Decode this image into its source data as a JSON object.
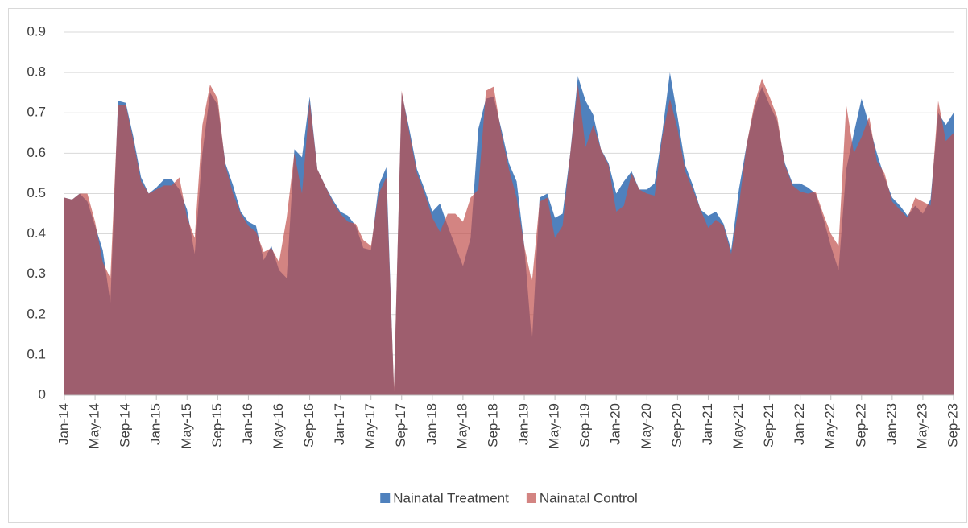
{
  "chart_data": {
    "type": "area",
    "categories": [
      "Jan-14",
      null,
      null,
      null,
      "May-14",
      null,
      null,
      null,
      "Sep-14",
      null,
      null,
      null,
      "Jan-15",
      null,
      null,
      null,
      "May-15",
      null,
      null,
      null,
      "Sep-15",
      null,
      null,
      null,
      "Jan-16",
      null,
      null,
      null,
      "May-16",
      null,
      null,
      null,
      "Sep-16",
      null,
      null,
      null,
      "Jan-17",
      null,
      null,
      null,
      "May-17",
      null,
      null,
      null,
      "Sep-17",
      null,
      null,
      null,
      "Jan-18",
      null,
      null,
      null,
      "May-18",
      null,
      null,
      null,
      "Sep-18",
      null,
      null,
      null,
      "Jan-19",
      null,
      null,
      null,
      "May-19",
      null,
      null,
      null,
      "Sep-19",
      null,
      null,
      null,
      "Jan-20",
      null,
      null,
      null,
      "May-20",
      null,
      null,
      null,
      "Sep-20",
      null,
      null,
      null,
      "Jan-21",
      null,
      null,
      null,
      "May-21",
      null,
      null,
      null,
      "Sep-21",
      null,
      null,
      null,
      "Jan-22",
      null,
      null,
      null,
      "May-22",
      null,
      null,
      null,
      "Sep-22",
      null,
      null,
      null,
      "Jan-23",
      null,
      null,
      null,
      "May-23",
      null,
      null,
      null,
      "Sep-23"
    ],
    "series": [
      {
        "name": "Nainatal Treatment",
        "color": "#4f81bd",
        "values": [
          0.49,
          0.485,
          0.5,
          0.48,
          0.42,
          0.36,
          0.23,
          0.73,
          0.725,
          0.64,
          0.54,
          0.5,
          0.515,
          0.535,
          0.535,
          0.51,
          0.46,
          0.35,
          0.6,
          0.75,
          0.72,
          0.575,
          0.52,
          0.455,
          0.43,
          0.42,
          0.335,
          0.37,
          0.31,
          0.29,
          0.61,
          0.59,
          0.74,
          0.56,
          0.52,
          0.485,
          0.455,
          0.445,
          0.42,
          0.365,
          0.36,
          0.52,
          0.565,
          0.01,
          0.75,
          0.66,
          0.56,
          0.51,
          0.455,
          0.475,
          0.42,
          0.37,
          0.32,
          0.39,
          0.66,
          0.735,
          0.74,
          0.66,
          0.575,
          0.53,
          0.37,
          0.13,
          0.49,
          0.5,
          0.44,
          0.45,
          0.6,
          0.79,
          0.73,
          0.695,
          0.61,
          0.575,
          0.5,
          0.53,
          0.555,
          0.51,
          0.51,
          0.525,
          0.65,
          0.8,
          0.69,
          0.57,
          0.52,
          0.46,
          0.445,
          0.455,
          0.425,
          0.36,
          0.51,
          0.62,
          0.71,
          0.765,
          0.72,
          0.68,
          0.575,
          0.525,
          0.525,
          0.515,
          0.5,
          0.44,
          0.37,
          0.31,
          0.56,
          0.65,
          0.735,
          0.67,
          0.6,
          0.54,
          0.49,
          0.47,
          0.445,
          0.47,
          0.45,
          0.485,
          0.7,
          0.67,
          0.7
        ]
      },
      {
        "name": "Nainatal Control",
        "color": "#c0504d",
        "values": [
          0.49,
          0.485,
          0.5,
          0.5,
          0.43,
          0.33,
          0.29,
          0.72,
          0.72,
          0.63,
          0.53,
          0.5,
          0.51,
          0.52,
          0.52,
          0.54,
          0.44,
          0.39,
          0.67,
          0.77,
          0.735,
          0.57,
          0.5,
          0.45,
          0.42,
          0.405,
          0.355,
          0.365,
          0.33,
          0.44,
          0.6,
          0.5,
          0.73,
          0.56,
          0.52,
          0.48,
          0.45,
          0.43,
          0.425,
          0.385,
          0.37,
          0.5,
          0.54,
          0.02,
          0.755,
          0.65,
          0.55,
          0.5,
          0.44,
          0.405,
          0.45,
          0.45,
          0.43,
          0.49,
          0.51,
          0.755,
          0.765,
          0.65,
          0.56,
          0.49,
          0.37,
          0.28,
          0.48,
          0.49,
          0.39,
          0.42,
          0.6,
          0.77,
          0.615,
          0.67,
          0.61,
          0.57,
          0.455,
          0.47,
          0.55,
          0.51,
          0.5,
          0.495,
          0.64,
          0.735,
          0.66,
          0.555,
          0.51,
          0.46,
          0.415,
          0.435,
          0.42,
          0.35,
          0.47,
          0.62,
          0.72,
          0.785,
          0.74,
          0.69,
          0.57,
          0.52,
          0.505,
          0.5,
          0.505,
          0.45,
          0.4,
          0.37,
          0.72,
          0.6,
          0.64,
          0.69,
          0.58,
          0.55,
          0.48,
          0.46,
          0.44,
          0.49,
          0.48,
          0.47,
          0.73,
          0.63,
          0.65
        ]
      }
    ],
    "ylim": [
      0,
      0.9
    ],
    "yticks": [
      0,
      0.1,
      0.2,
      0.3,
      0.4,
      0.5,
      0.6,
      0.7,
      0.8,
      0.9
    ],
    "grid": true,
    "legend": "bottom"
  }
}
